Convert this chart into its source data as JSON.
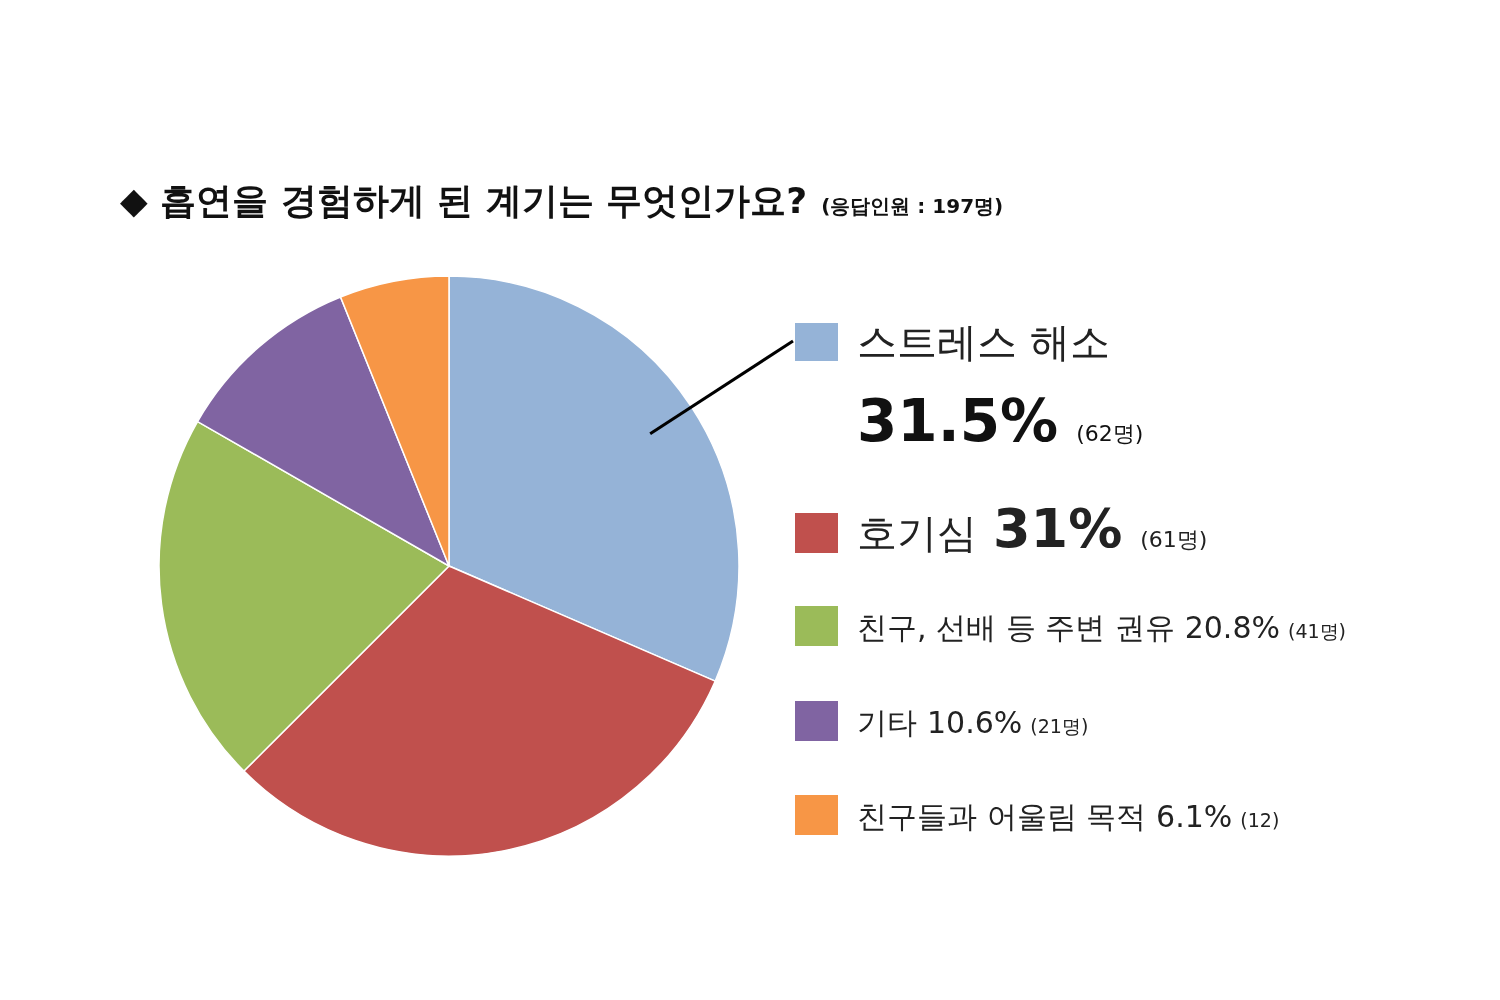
{
  "chart_data": {
    "type": "pie",
    "title": "◆ 흡연을 경험하게 된 계기는 무엇인가요?",
    "subtitle": "(응답인원 : 197명)",
    "categories": [
      "스트레스 해소",
      "호기심",
      "친구, 선배 등 주변 권유",
      "기타",
      "친구들과 어울림 목적"
    ],
    "values": [
      31.5,
      31,
      20.8,
      10.6,
      6.1
    ],
    "colors": [
      "#95b3d7",
      "#c0504d",
      "#9bbb59",
      "#8064a2",
      "#f79646"
    ],
    "value_labels": [
      "31.5% (62명)",
      "31% (61명)",
      "20.8% (41명)",
      "10.6% (21명)",
      "6.1% (12)"
    ],
    "legend": "right"
  }
}
